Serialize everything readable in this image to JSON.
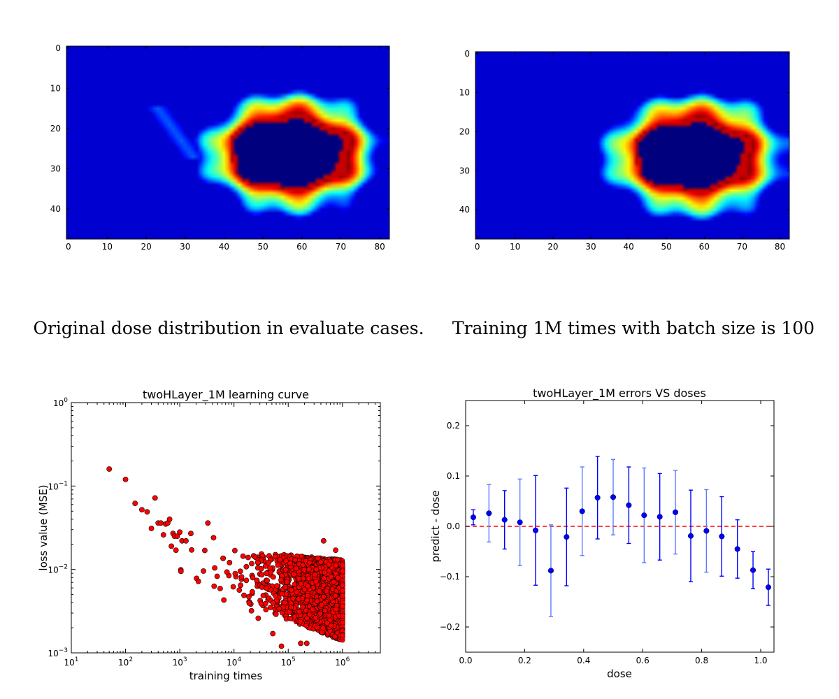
{
  "captions": {
    "left": "Original dose distribution in evaluate cases.",
    "right": "Training 1M times with batch size is 100"
  },
  "colors": {
    "scatter_fill": "#ff0000",
    "scatter_edge": "#000000",
    "errorbar": "#0000ff",
    "errorbar_light": "#5b7bff",
    "zero_line": "#ff0000"
  },
  "chart_data": [
    {
      "type": "heatmap",
      "title": "",
      "caption": "Original dose distribution in evaluate cases.",
      "colormap": "jet",
      "grid_shape": [
        48,
        83
      ],
      "xlim": [
        -0.5,
        82.5
      ],
      "ylim": [
        47.5,
        -0.5
      ],
      "xticks": [
        0,
        10,
        20,
        30,
        40,
        50,
        60,
        70,
        80
      ],
      "yticks": [
        0,
        10,
        20,
        30,
        40
      ],
      "target_shape": {
        "center": [
          56,
          26
        ],
        "hollow_radii": [
          14,
          8.5
        ],
        "ring_falloff": 1.35,
        "streak": true
      }
    },
    {
      "type": "heatmap",
      "title": "",
      "caption": "Training 1M times with batch size is 100",
      "colormap": "jet",
      "grid_shape": [
        48,
        83
      ],
      "xlim": [
        -0.5,
        82.5
      ],
      "ylim": [
        47.5,
        -0.5
      ],
      "xticks": [
        0,
        10,
        20,
        30,
        40,
        50,
        60,
        70,
        80
      ],
      "yticks": [
        0,
        10,
        20,
        30,
        40
      ],
      "target_shape": {
        "center": [
          56,
          26
        ],
        "hollow_radii": [
          14,
          8.5
        ],
        "ring_falloff": 1.15,
        "streak": false
      }
    },
    {
      "type": "scatter",
      "title": "twoHLayer_1M learning curve",
      "xlabel": "training times",
      "ylabel": "loss value (MSE)",
      "xscale": "log",
      "yscale": "log",
      "xlim": [
        10,
        5000000
      ],
      "ylim": [
        0.001,
        1
      ],
      "xticks": [
        "10^1",
        "10^2",
        "10^3",
        "10^4",
        "10^5",
        "10^6"
      ],
      "yticks": [
        "10^-3",
        "10^-2",
        "10^-1",
        "10^0"
      ],
      "points": [
        [
          50,
          0.16
        ],
        [
          100,
          0.12
        ],
        [
          150,
          0.062
        ],
        [
          200,
          0.052
        ],
        [
          250,
          0.049
        ],
        [
          300,
          0.031
        ],
        [
          350,
          0.072
        ],
        [
          400,
          0.036
        ],
        [
          450,
          0.036
        ],
        [
          500,
          0.026
        ],
        [
          550,
          0.035
        ],
        [
          600,
          0.036
        ],
        [
          650,
          0.04
        ],
        [
          700,
          0.019
        ],
        [
          750,
          0.027
        ],
        [
          800,
          0.025
        ],
        [
          850,
          0.017
        ],
        [
          900,
          0.025
        ],
        [
          1000,
          0.028
        ],
        [
          1050,
          0.0095
        ],
        [
          1100,
          0.022
        ],
        [
          1300,
          0.022
        ],
        [
          1600,
          0.027
        ],
        [
          2200,
          0.0072
        ],
        [
          3300,
          0.036
        ],
        [
          4200,
          0.024
        ],
        [
          4300,
          0.0063
        ],
        [
          6500,
          0.0043
        ],
        [
          21000,
          0.0032
        ],
        [
          28000,
          0.0026
        ],
        [
          52000,
          0.0017
        ],
        [
          75000,
          0.0012
        ],
        [
          170000,
          0.0013
        ],
        [
          220000,
          0.0013
        ],
        [
          450000,
          0.022
        ],
        [
          750000,
          0.017
        ]
      ],
      "dense_cloud": {
        "x_range": [
          1000,
          1000000
        ],
        "upper_loss": [
          0.02,
          0.013
        ],
        "lower_loss": [
          0.008,
          0.0014
        ],
        "count": 2600
      }
    },
    {
      "type": "errorbar",
      "title": "twoHLayer_1M errors VS doses",
      "xlabel": "dose",
      "ylabel": "predict - dose",
      "xlim": [
        0,
        1.045
      ],
      "ylim": [
        -0.25,
        0.25
      ],
      "xticks": [
        "0.0",
        "0.2",
        "0.4",
        "0.6",
        "0.8",
        "1.0"
      ],
      "yticks": [
        "−0.2",
        "−0.1",
        "0.0",
        "0.1",
        "0.2"
      ],
      "reference_line": 0.0,
      "x": [
        0.026,
        0.079,
        0.132,
        0.184,
        0.237,
        0.289,
        0.342,
        0.395,
        0.447,
        0.5,
        0.553,
        0.605,
        0.658,
        0.711,
        0.763,
        0.816,
        0.868,
        0.921,
        0.974,
        1.026
      ],
      "y": [
        0.018,
        0.026,
        0.013,
        0.008,
        -0.008,
        -0.088,
        -0.021,
        0.03,
        0.057,
        0.058,
        0.042,
        0.022,
        0.019,
        0.028,
        -0.019,
        -0.009,
        -0.02,
        -0.045,
        -0.087,
        -0.121
      ],
      "yerr": [
        0.015,
        0.057,
        0.058,
        0.086,
        0.109,
        0.091,
        0.097,
        0.088,
        0.082,
        0.075,
        0.076,
        0.094,
        0.086,
        0.083,
        0.091,
        0.082,
        0.079,
        0.058,
        0.037,
        0.036
      ]
    }
  ]
}
